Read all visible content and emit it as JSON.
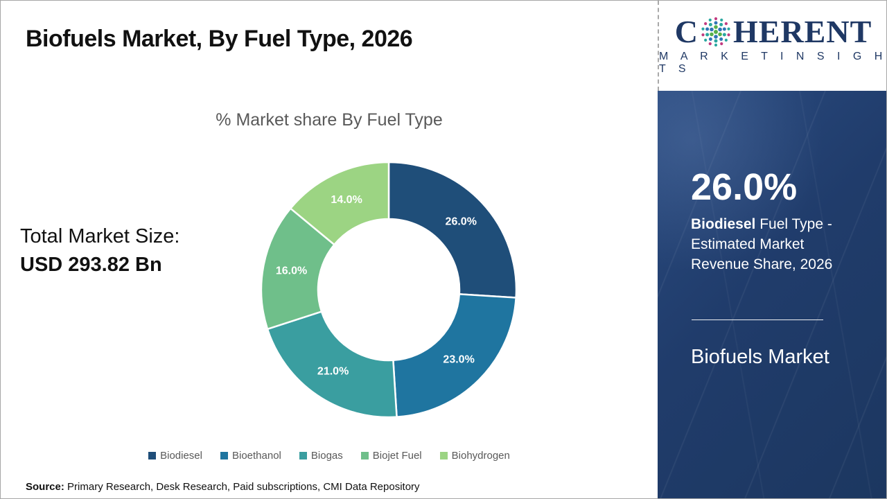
{
  "slide": {
    "title": "Biofuels Market, By Fuel Type, 2026",
    "source_label": "Source:",
    "source_text": " Primary Research, Desk Research, Paid subscriptions, CMI Data Repository"
  },
  "logo": {
    "name": "coherent-market-insights",
    "word_start": "C",
    "word_end": "HERENT",
    "subtitle": "M A R K E T   I N S I G H T S",
    "colors": {
      "navy": "#1f3864",
      "globe_magenta": "#c23b80",
      "globe_teal": "#2aa7a0",
      "globe_blue": "#2e75b6",
      "globe_green": "#56b04b"
    }
  },
  "left_stats": {
    "label": "Total Market Size:",
    "value": "USD 293.82 Bn"
  },
  "chart_data": {
    "type": "pie",
    "subtype": "donut",
    "title": "% Market share By Fuel Type",
    "categories": [
      "Biodiesel",
      "Bioethanol",
      "Biogas",
      "Biojet Fuel",
      "Biohydrogen"
    ],
    "values": [
      26.0,
      23.0,
      21.0,
      16.0,
      14.0
    ],
    "slice_labels": [
      "26.0%",
      "23.0%",
      "21.0%",
      "16.0%",
      "14.0%"
    ],
    "colors": [
      "#1f4e79",
      "#1f75a0",
      "#3a9ea0",
      "#6fbf8a",
      "#9cd483"
    ],
    "start_angle_deg": 0,
    "direction": "clockwise",
    "legend_position": "bottom",
    "label_text_color": "#ffffff"
  },
  "side_panel": {
    "stat_value": "26.0%",
    "desc_bold": "Biodiesel",
    "desc_rest": " Fuel Type - Estimated Market Revenue Share, 2026",
    "panel_title": "Biofuels Market",
    "bg_color": "#203c6b"
  }
}
